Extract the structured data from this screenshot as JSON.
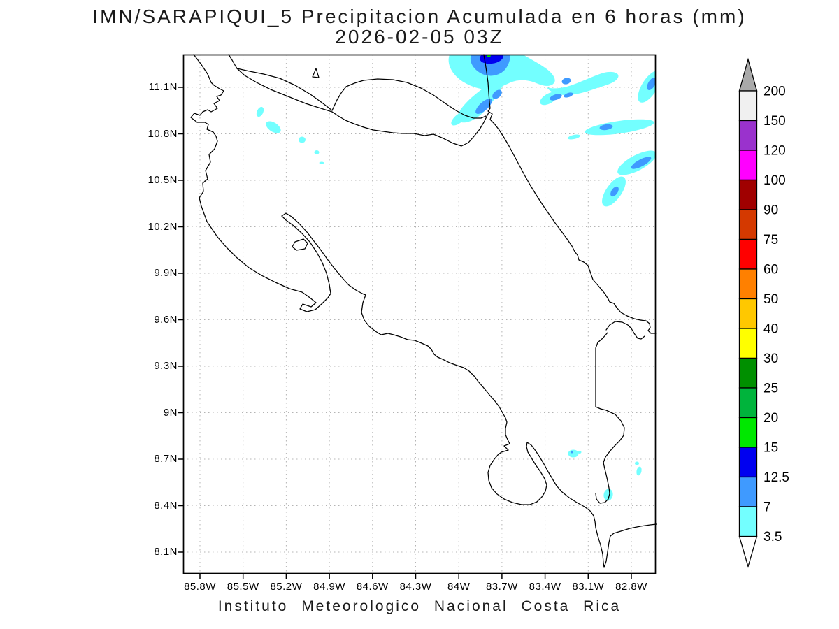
{
  "title": {
    "line1": "IMN/SARAPIQUI_5 Precipitacion Acumulada en 6 horas (mm)",
    "line2": "2026-02-05 03Z"
  },
  "footer": "Instituto Meteorologico Nacional Costa Rica",
  "axes": {
    "x_ticks": [
      "85.8W",
      "85.5W",
      "85.2W",
      "84.9W",
      "84.6W",
      "84.3W",
      "84W",
      "83.7W",
      "83.4W",
      "83.1W",
      "82.8W"
    ],
    "y_ticks": [
      "11.1N",
      "10.8N",
      "10.5N",
      "10.2N",
      "9.9N",
      "9.6N",
      "9.3N",
      "9N",
      "8.7N",
      "8.4N",
      "8.1N"
    ]
  },
  "colorbar": {
    "boundary_labels": [
      "200",
      "150",
      "120",
      "100",
      "90",
      "75",
      "60",
      "50",
      "40",
      "30",
      "25",
      "20",
      "15",
      "12.5",
      "7",
      "3.5"
    ],
    "segment_colors": [
      "#f0f0f0",
      "#9a32cd",
      "#ff00ff",
      "#a00000",
      "#d43900",
      "#ff0000",
      "#ff8000",
      "#ffc800",
      "#ffff00",
      "#008f00",
      "#00b43c",
      "#00e800",
      "#0000f0",
      "#3f9aff",
      "#73ffff"
    ],
    "arrow_top_color": "#a9a9a9",
    "arrow_bottom_color": "#ffffff"
  },
  "precip_levels": {
    "c_3_5": "#73ffff",
    "c_7": "#3f9aff",
    "c_12_5": "#0000f0",
    "c_15": "#00e800"
  },
  "map_style": {
    "coast_color": "#000000",
    "grid_color": "#b4b4b4",
    "frame_color": "#000000"
  }
}
